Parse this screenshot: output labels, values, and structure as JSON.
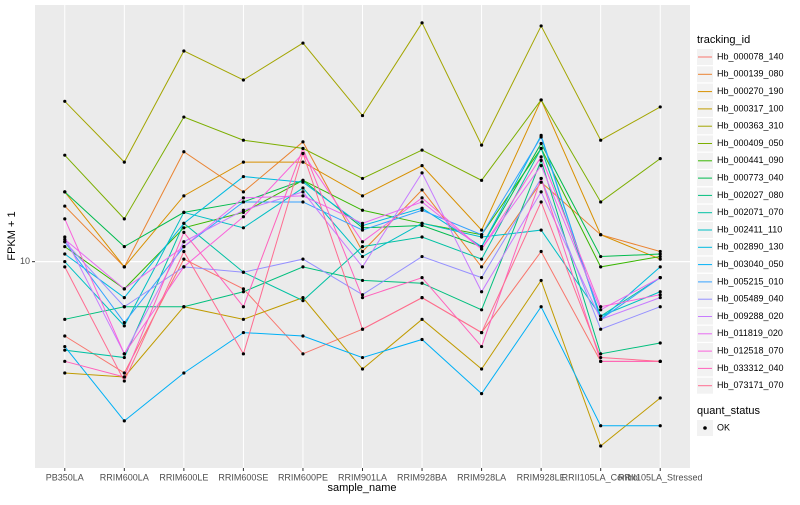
{
  "chart_data": {
    "type": "line",
    "y_scale": "log",
    "grid": true,
    "legend_position": "right",
    "xlabel": "sample_name",
    "ylabel": "FPKM + 1",
    "legend_title": "tracking_id",
    "point_color": "#000000",
    "shape_legend": {
      "title": "quant_status",
      "labels": [
        "OK"
      ]
    },
    "categories": [
      "PB350LA",
      "RRIM600LA",
      "RRIM600LE",
      "RRIM600SE",
      "RRIM600PE",
      "RRIM901LA",
      "RRIM928BA",
      "RRIM928LA",
      "RRIM928LE",
      "RRII105LA_Control",
      "RRII105LA_Stressed"
    ],
    "ylim": [
      4.5,
      27
    ],
    "yticks": [
      10
    ],
    "series": [
      {
        "name": "Hb_000078_140",
        "color": "#F8766D",
        "values": [
          7.5,
          6.5,
          10.1,
          9.0,
          7.0,
          7.7,
          8.7,
          7.6,
          10.4,
          6.8,
          6.8
        ]
      },
      {
        "name": "Hb_000139_080",
        "color": "#EA8331",
        "values": [
          12.4,
          9.8,
          15.3,
          13.1,
          15.9,
          10.4,
          13.2,
          9.8,
          13.6,
          11.1,
          10.4
        ]
      },
      {
        "name": "Hb_000270_190",
        "color": "#D89000",
        "values": [
          13.1,
          9.8,
          12.9,
          14.7,
          14.7,
          12.9,
          14.5,
          11.3,
          18.7,
          11.1,
          10.1
        ]
      },
      {
        "name": "Hb_000317_100",
        "color": "#C09B00",
        "values": [
          6.5,
          6.4,
          8.4,
          8.0,
          8.7,
          6.6,
          8.0,
          6.6,
          9.3,
          4.9,
          5.9
        ]
      },
      {
        "name": "Hb_000363_310",
        "color": "#A3A500",
        "values": [
          18.6,
          14.7,
          22.6,
          20.2,
          23.3,
          17.6,
          25.2,
          15.7,
          24.9,
          16.0,
          18.2
        ]
      },
      {
        "name": "Hb_000409_050",
        "color": "#7CAE00",
        "values": [
          15.1,
          11.8,
          17.5,
          16.0,
          15.5,
          13.8,
          15.4,
          13.7,
          18.7,
          12.6,
          14.9
        ]
      },
      {
        "name": "Hb_000441_090",
        "color": "#39B600",
        "values": [
          10.6,
          9.0,
          11.4,
          12.1,
          13.7,
          12.2,
          11.6,
          11.1,
          15.5,
          9.8,
          10.2
        ]
      },
      {
        "name": "Hb_000773_040",
        "color": "#00BB4E",
        "values": [
          13.1,
          10.6,
          12.1,
          12.6,
          13.7,
          11.4,
          11.5,
          10.6,
          15.8,
          10.2,
          10.3
        ]
      },
      {
        "name": "Hb_002027_080",
        "color": "#00BF7D",
        "values": [
          8.0,
          8.4,
          8.4,
          8.9,
          9.8,
          9.3,
          9.2,
          8.3,
          14.8,
          7.0,
          7.3
        ]
      },
      {
        "name": "Hb_002071_070",
        "color": "#00C1A3",
        "values": [
          7.1,
          6.9,
          11.6,
          9.6,
          8.6,
          10.6,
          11.0,
          10.1,
          15.5,
          8.1,
          9.4
        ]
      },
      {
        "name": "Hb_002411_110",
        "color": "#00BFC4",
        "values": [
          10.0,
          7.8,
          12.1,
          11.4,
          13.3,
          10.2,
          11.6,
          11.0,
          11.3,
          8.1,
          8.9
        ]
      },
      {
        "name": "Hb_002890_130",
        "color": "#00BAE0",
        "values": [
          10.3,
          8.7,
          11.6,
          13.9,
          13.6,
          11.5,
          12.3,
          10.6,
          16.3,
          8.0,
          9.8
        ]
      },
      {
        "name": "Hb_003040_050",
        "color": "#00B0F6",
        "values": [
          7.2,
          5.4,
          6.5,
          7.6,
          7.5,
          6.9,
          7.4,
          6.0,
          8.4,
          5.3,
          5.3
        ]
      },
      {
        "name": "Hb_005215_010",
        "color": "#35A2FF",
        "values": [
          10.8,
          7.9,
          10.6,
          12.6,
          12.6,
          11.3,
          12.2,
          11.1,
          16.2,
          8.0,
          9.4
        ]
      },
      {
        "name": "Hb_005489_040",
        "color": "#9590FF",
        "values": [
          10.8,
          8.4,
          9.8,
          9.6,
          10.1,
          8.8,
          10.2,
          9.4,
          13.8,
          7.7,
          8.4
        ]
      },
      {
        "name": "Hb_009288_020",
        "color": "#C77CFF",
        "values": [
          11.0,
          7.0,
          10.8,
          12.2,
          13.1,
          9.8,
          14.1,
          8.9,
          13.1,
          8.0,
          8.7
        ]
      },
      {
        "name": "Hb_011819_020",
        "color": "#E76BF3",
        "values": [
          10.9,
          9.0,
          10.6,
          12.8,
          12.9,
          11.6,
          12.6,
          10.5,
          14.5,
          8.3,
          9.4
        ]
      },
      {
        "name": "Hb_012518_070",
        "color": "#FA62DB",
        "values": [
          11.8,
          7.0,
          9.8,
          11.9,
          15.2,
          10.8,
          12.8,
          10.5,
          15.0,
          8.4,
          8.8
        ]
      },
      {
        "name": "Hb_033312_040",
        "color": "#FF62BC",
        "values": [
          6.8,
          6.4,
          11.2,
          8.4,
          15.5,
          8.7,
          9.4,
          7.2,
          13.8,
          6.8,
          6.8
        ]
      },
      {
        "name": "Hb_073171_070",
        "color": "#FF6C91",
        "values": [
          9.8,
          6.3,
          10.4,
          7.0,
          15.2,
          7.7,
          8.7,
          7.6,
          12.6,
          6.9,
          6.8
        ]
      }
    ]
  }
}
